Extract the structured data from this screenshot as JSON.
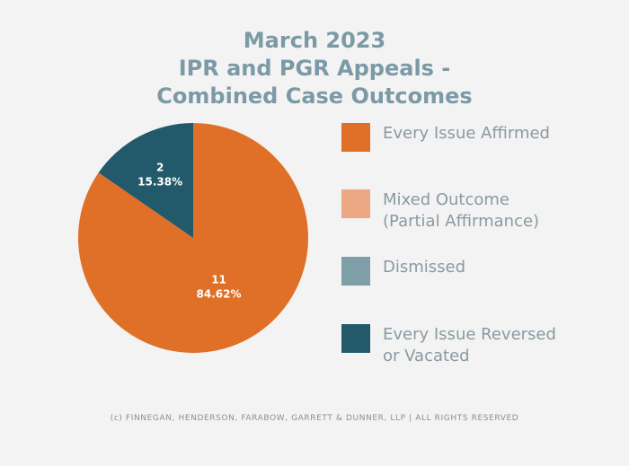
{
  "title_lines": [
    "March 2023",
    "IPR and PGR Appeals -",
    "Combined Case Outcomes"
  ],
  "chart_data": {
    "type": "pie",
    "title": "March 2023 IPR and PGR Appeals - Combined Case Outcomes",
    "slices": [
      {
        "label": "Every Issue Affirmed",
        "count": "11",
        "percent": "84.62%",
        "value": 11,
        "color": "#e07027"
      },
      {
        "label": "Every Issue Reversed or Vacated",
        "count": "2",
        "percent": "15.38%",
        "value": 2,
        "color": "#235a6b"
      }
    ],
    "legend": [
      {
        "label": "Every Issue Affirmed",
        "color": "#e07027"
      },
      {
        "label": "Mixed Outcome\n(Partial Affirmance)",
        "color": "#eba882"
      },
      {
        "label": "Dismissed",
        "color": "#7e9ea8"
      },
      {
        "label": "Every Issue Reversed\nor Vacated",
        "color": "#235a6b"
      }
    ],
    "legend_position": "right"
  },
  "footer": "(c) FINNEGAN, HENDERSON, FARABOW, GARRETT & DUNNER, LLP | ALL RIGHTS RESERVED"
}
